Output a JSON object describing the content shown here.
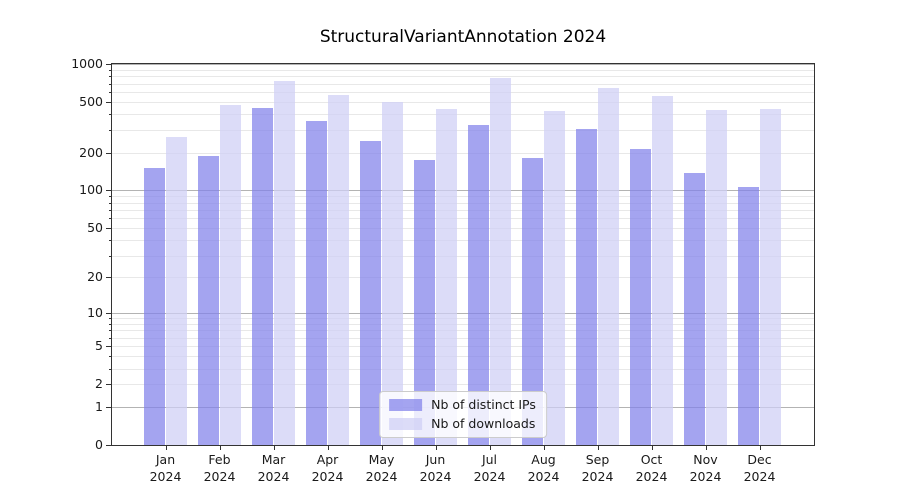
{
  "title": "StructuralVariantAnnotation 2024",
  "chart_data": {
    "type": "bar",
    "title": "StructuralVariantAnnotation 2024",
    "categories": [
      "Jan 2024",
      "Feb 2024",
      "Mar 2024",
      "Apr 2024",
      "May 2024",
      "Jun 2024",
      "Jul 2024",
      "Aug 2024",
      "Sep 2024",
      "Oct 2024",
      "Nov 2024",
      "Dec 2024"
    ],
    "series": [
      {
        "name": "Nb of distinct IPs",
        "color": "#8181ea",
        "values": [
          151,
          189,
          447,
          357,
          249,
          174,
          328,
          181,
          308,
          212,
          138,
          107
        ]
      },
      {
        "name": "Nb of downloads",
        "color": "#cecef5",
        "values": [
          264,
          472,
          739,
          573,
          499,
          441,
          770,
          428,
          646,
          556,
          433,
          441
        ]
      }
    ],
    "fill_alpha": 0.72,
    "y_scale": "log1p",
    "ylim": [
      0,
      1000
    ],
    "y_ticks_labeled": [
      0,
      1,
      2,
      5,
      10,
      20,
      50,
      100,
      200,
      500,
      1000
    ],
    "y_major_gridlines": [
      1,
      10,
      100,
      1000
    ],
    "y_minor_gridlines": [
      2,
      3,
      4,
      5,
      6,
      7,
      8,
      9,
      20,
      30,
      40,
      50,
      60,
      70,
      80,
      90,
      200,
      300,
      400,
      500,
      600,
      700,
      800,
      900
    ],
    "grid": true,
    "legend_position": "lower center",
    "axis_color": "#333333",
    "major_grid_color": "#b3b3b3",
    "minor_grid_color": "#e8e8e8"
  }
}
